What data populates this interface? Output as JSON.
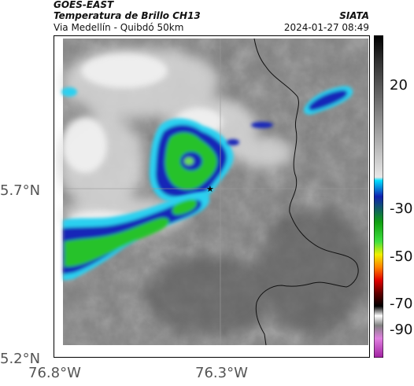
{
  "header": {
    "satellite": "GOES-EAST",
    "product": "Temperatura de Brillo CH13",
    "route": "Via Medellín - Quibdó 50km",
    "organization": "SIATA",
    "datetime": "2024-01-27 08:49"
  },
  "axes": {
    "y_labels": [
      "5.7°N",
      "5.2°N"
    ],
    "x_labels": [
      "76.8°W",
      "76.3°W"
    ]
  },
  "colorbar": {
    "labels": [
      "20",
      "-30",
      "-50",
      "-70",
      "-90"
    ]
  },
  "colors": {
    "cyan": "#2ad0f0",
    "blue": "#1826b8",
    "green": "#27c22a"
  },
  "markers": {
    "star": "★"
  }
}
